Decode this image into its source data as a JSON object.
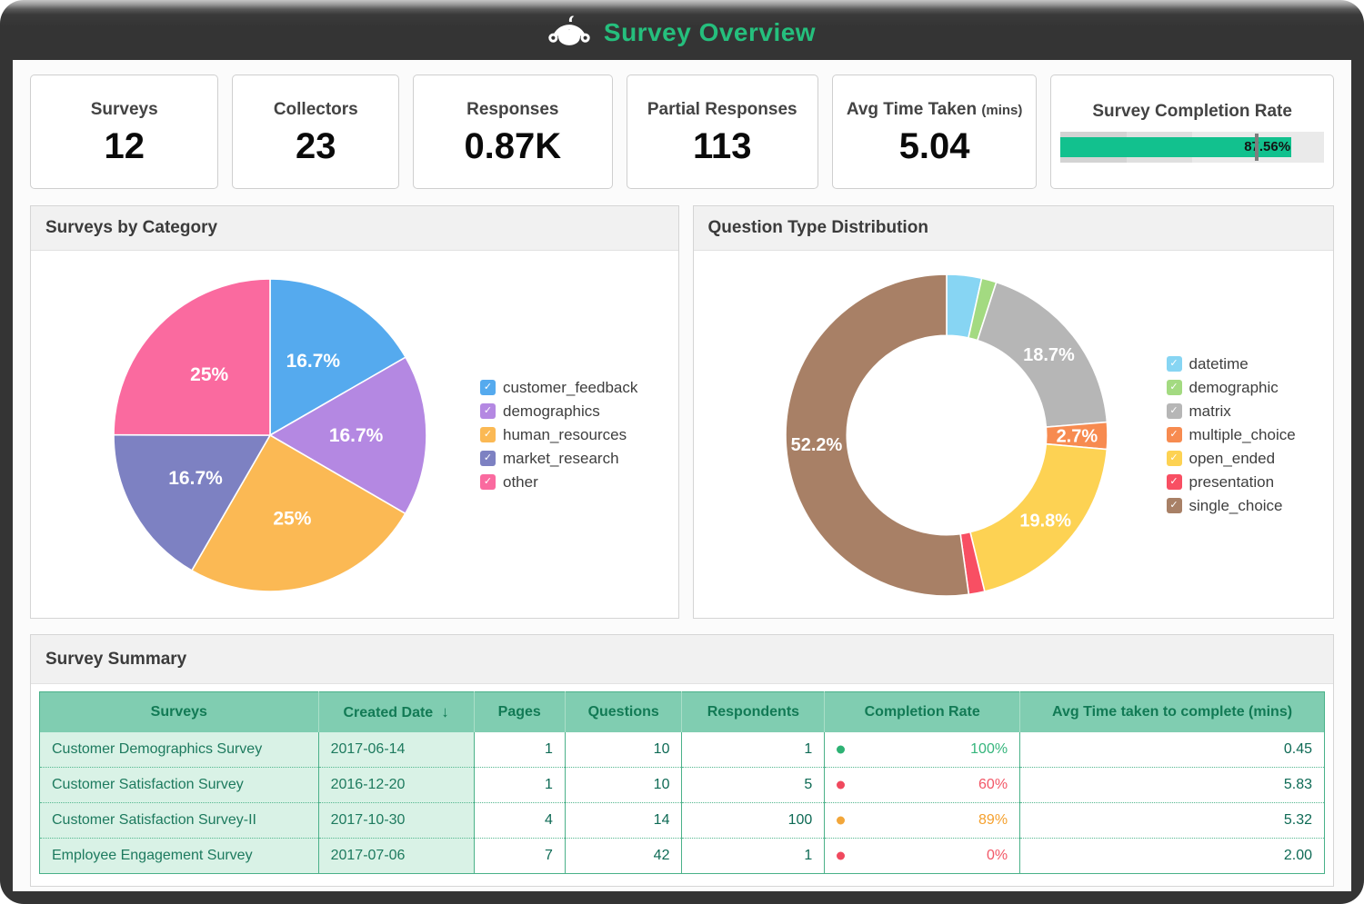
{
  "header": {
    "title": "Survey Overview",
    "title_color": "#25bf7d",
    "bg_color": "#343434",
    "logo": "surveymonkey-monkey-icon"
  },
  "kpis": [
    {
      "label": "Surveys",
      "value": "12"
    },
    {
      "label": "Collectors",
      "value": "23"
    },
    {
      "label": "Responses",
      "value": "0.87K"
    },
    {
      "label": "Partial Responses",
      "value": "113"
    },
    {
      "label": "Avg Time Taken",
      "label_suffix": "(mins)",
      "value": "5.04"
    },
    {
      "label": "Survey Completion Rate"
    }
  ],
  "completion_bullet": {
    "value_pct": 87.56,
    "value_label": "87.56%",
    "target_pct": 74.5,
    "bar_color": "#12c18e",
    "target_color": "#7d7d7d",
    "bands": [
      {
        "to_pct": 25,
        "color": "#d3d3d3"
      },
      {
        "to_pct": 50,
        "color": "#dfdfdf"
      },
      {
        "to_pct": 100,
        "color": "#eaeaea"
      }
    ]
  },
  "panels": {
    "categories_title": "Surveys by Category",
    "question_types_title": "Question Type Distribution",
    "summary_title": "Survey Summary"
  },
  "chart_data": [
    {
      "type": "pie",
      "title": "Surveys by Category",
      "categories": [
        "customer_feedback",
        "demographics",
        "human_resources",
        "market_research",
        "other"
      ],
      "values": [
        16.7,
        16.7,
        25,
        16.7,
        25
      ],
      "labels": [
        "16.7%",
        "16.7%",
        "25%",
        "16.7%",
        "25%"
      ],
      "colors": [
        "#55aaee",
        "#b488e2",
        "#fbb954",
        "#7d81c2",
        "#fa6a9f"
      ],
      "start_at_top": true,
      "clockwise": true,
      "legend_position": "right"
    },
    {
      "type": "pie",
      "donut": true,
      "inner_radius_ratio": 0.62,
      "title": "Question Type Distribution",
      "categories": [
        "datetime",
        "demographic",
        "matrix",
        "multiple_choice",
        "open_ended",
        "presentation",
        "single_choice"
      ],
      "values": [
        3.5,
        1.5,
        18.7,
        2.7,
        19.8,
        1.6,
        52.2
      ],
      "labels": [
        "",
        "",
        "18.7%",
        "2.7%",
        "19.8%",
        "",
        "52.2%"
      ],
      "colors": [
        "#87d5f3",
        "#a3da81",
        "#b6b6b6",
        "#f78b50",
        "#fdd253",
        "#f84f63",
        "#a88066"
      ],
      "start_at_top": true,
      "clockwise": true,
      "legend_position": "right"
    }
  ],
  "table": {
    "columns": [
      {
        "label": "Surveys"
      },
      {
        "label": "Created Date",
        "sort": "desc"
      },
      {
        "label": "Pages"
      },
      {
        "label": "Questions"
      },
      {
        "label": "Respondents"
      },
      {
        "label": "Completion Rate"
      },
      {
        "label": "Avg Time taken to complete (mins)"
      }
    ],
    "rows": [
      {
        "survey": "Customer Demographics Survey",
        "created": "2017-06-14",
        "pages": "1",
        "questions": "10",
        "respondents": "1",
        "completion": "100%",
        "completion_status": "green",
        "avg_time": "0.45"
      },
      {
        "survey": "Customer Satisfaction Survey",
        "created": "2016-12-20",
        "pages": "1",
        "questions": "10",
        "respondents": "5",
        "completion": "60%",
        "completion_status": "red",
        "avg_time": "5.83"
      },
      {
        "survey": "Customer Satisfaction Survey-II",
        "created": "2017-10-30",
        "pages": "4",
        "questions": "14",
        "respondents": "100",
        "completion": "89%",
        "completion_status": "orange",
        "avg_time": "5.32"
      },
      {
        "survey": "Employee Engagement Survey",
        "created": "2017-07-06",
        "pages": "7",
        "questions": "42",
        "respondents": "1",
        "completion": "0%",
        "completion_status": "red",
        "avg_time": "2.00"
      }
    ],
    "dot_colors": {
      "green": "#2eb274",
      "red": "#f0495e",
      "orange": "#f2a63a"
    },
    "pct_colors": {
      "green": "#35b57c",
      "red": "#f25767",
      "orange": "#f5a02d"
    }
  }
}
